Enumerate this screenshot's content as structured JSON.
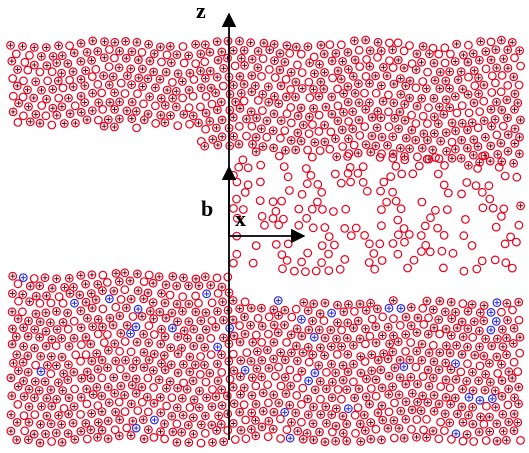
{
  "labels": {
    "z_axis": "z",
    "x_axis": "x",
    "b_vector": "b"
  },
  "colors": {
    "atom_outline": "#e8001c",
    "atom_cross": "#7a0012",
    "blue_accent": "#2b2bdf",
    "axis": "#000000"
  },
  "legend": []
}
